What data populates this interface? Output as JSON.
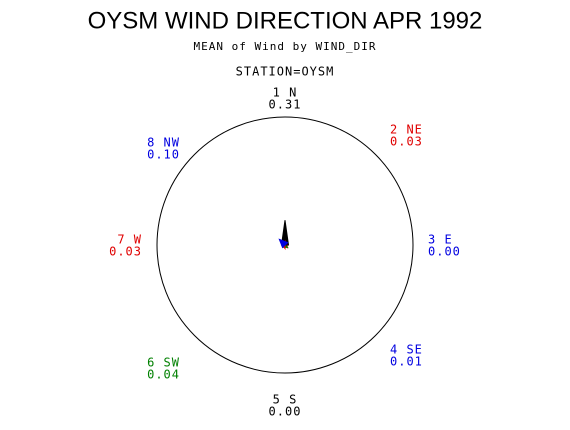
{
  "chart_data": {
    "type": "windrose",
    "title": "OYSM WIND DIRECTION APR 1992",
    "subtitle": "MEAN of Wind by WIND_DIR",
    "annotation": "STATION=OYSM",
    "categories": [
      "1 N",
      "2 NE",
      "3 E",
      "4 SE",
      "5 S",
      "6 SW",
      "7 W",
      "8 NW"
    ],
    "values": [
      0.31,
      0.03,
      0,
      0.01,
      0,
      0.04,
      0.03,
      0.1
    ],
    "value_labels": [
      "0.31",
      "0.03",
      "0.00",
      "0.01",
      "0.00",
      "0.04",
      "0.03",
      "0.10"
    ],
    "colors": [
      "#000000",
      "#e00000",
      "#0000e0",
      "#0000e0",
      "#000000",
      "#008000",
      "#e00000",
      "#0000e0"
    ]
  }
}
